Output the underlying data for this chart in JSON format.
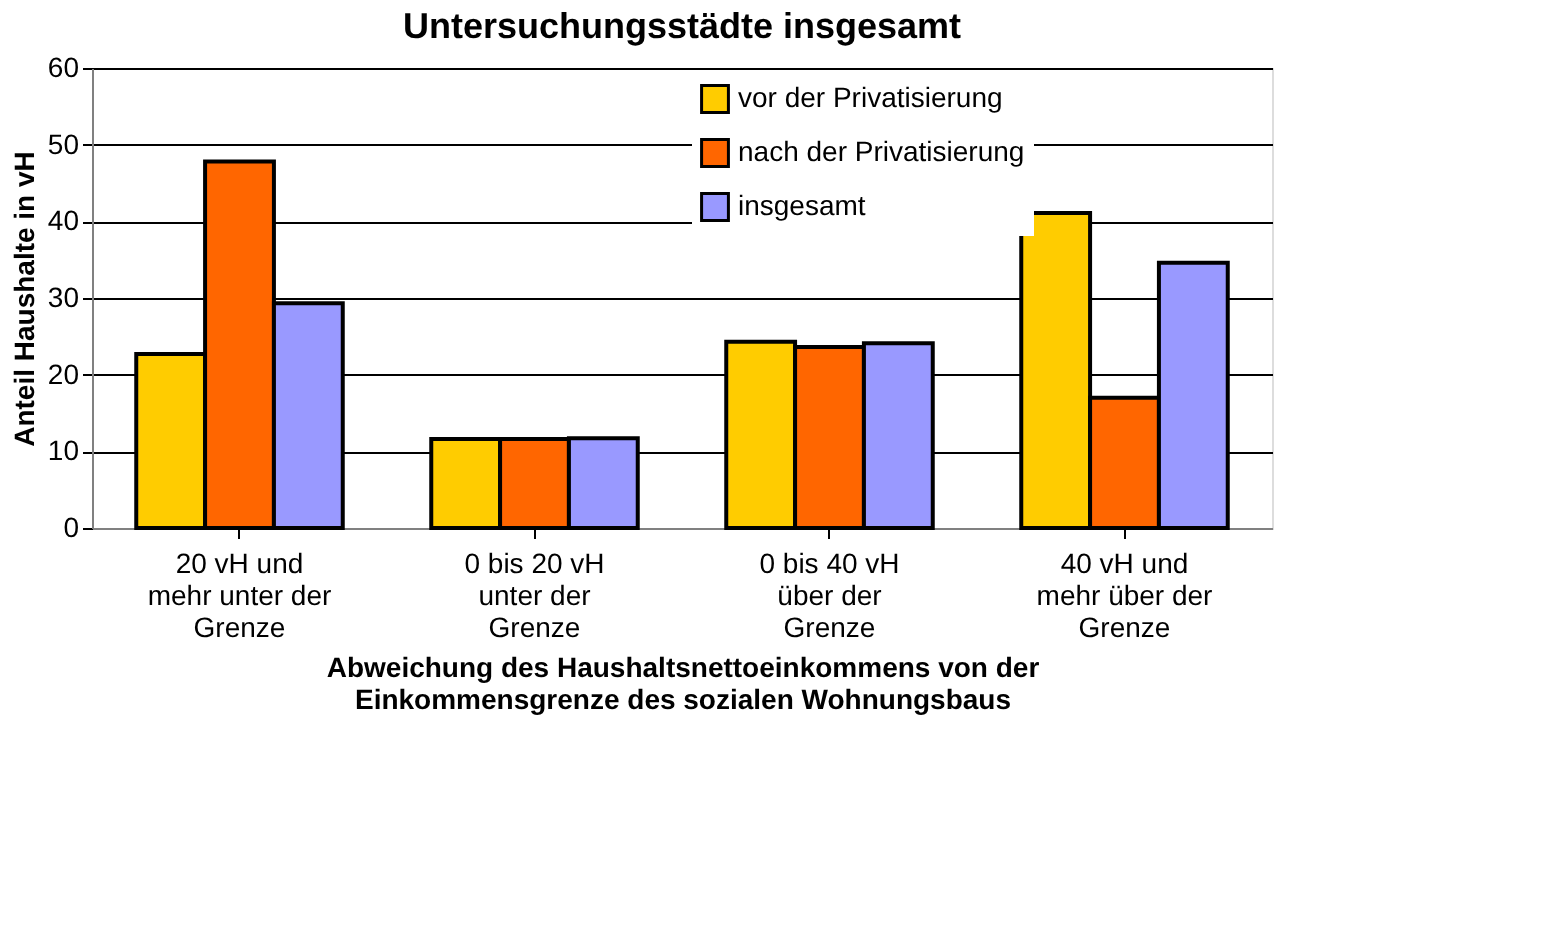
{
  "chart_data": {
    "type": "bar",
    "title": "Untersuchungsstädte insgesamt",
    "xlabel": "Abweichung des Haushaltsnettoeinkommens  von der\nEinkommensgrenze des sozialen Wohnungsbaus",
    "ylabel": "Anteil Haushalte in vH",
    "categories": [
      "20 vH und\nmehr unter der\nGrenze",
      "0 bis 20 vH\nunter der\nGrenze",
      "0 bis 40 vH\nüber der\nGrenze",
      "40 vH und\nmehr über der\nGrenze"
    ],
    "series": [
      {
        "name": "vor der Privatisierung",
        "color": "#ffcc00",
        "values": [
          22.7,
          11.6,
          24.3,
          41.1
        ]
      },
      {
        "name": "nach der Privatisierung",
        "color": "#ff6600",
        "values": [
          47.8,
          11.6,
          23.6,
          17.0
        ]
      },
      {
        "name": "insgesamt",
        "color": "#9999ff",
        "values": [
          29.3,
          11.7,
          24.1,
          34.6
        ]
      }
    ],
    "ylim": [
      0,
      60
    ],
    "yticks": [
      0,
      10,
      20,
      30,
      40,
      50,
      60
    ],
    "grid": "y",
    "legend": "top right"
  }
}
